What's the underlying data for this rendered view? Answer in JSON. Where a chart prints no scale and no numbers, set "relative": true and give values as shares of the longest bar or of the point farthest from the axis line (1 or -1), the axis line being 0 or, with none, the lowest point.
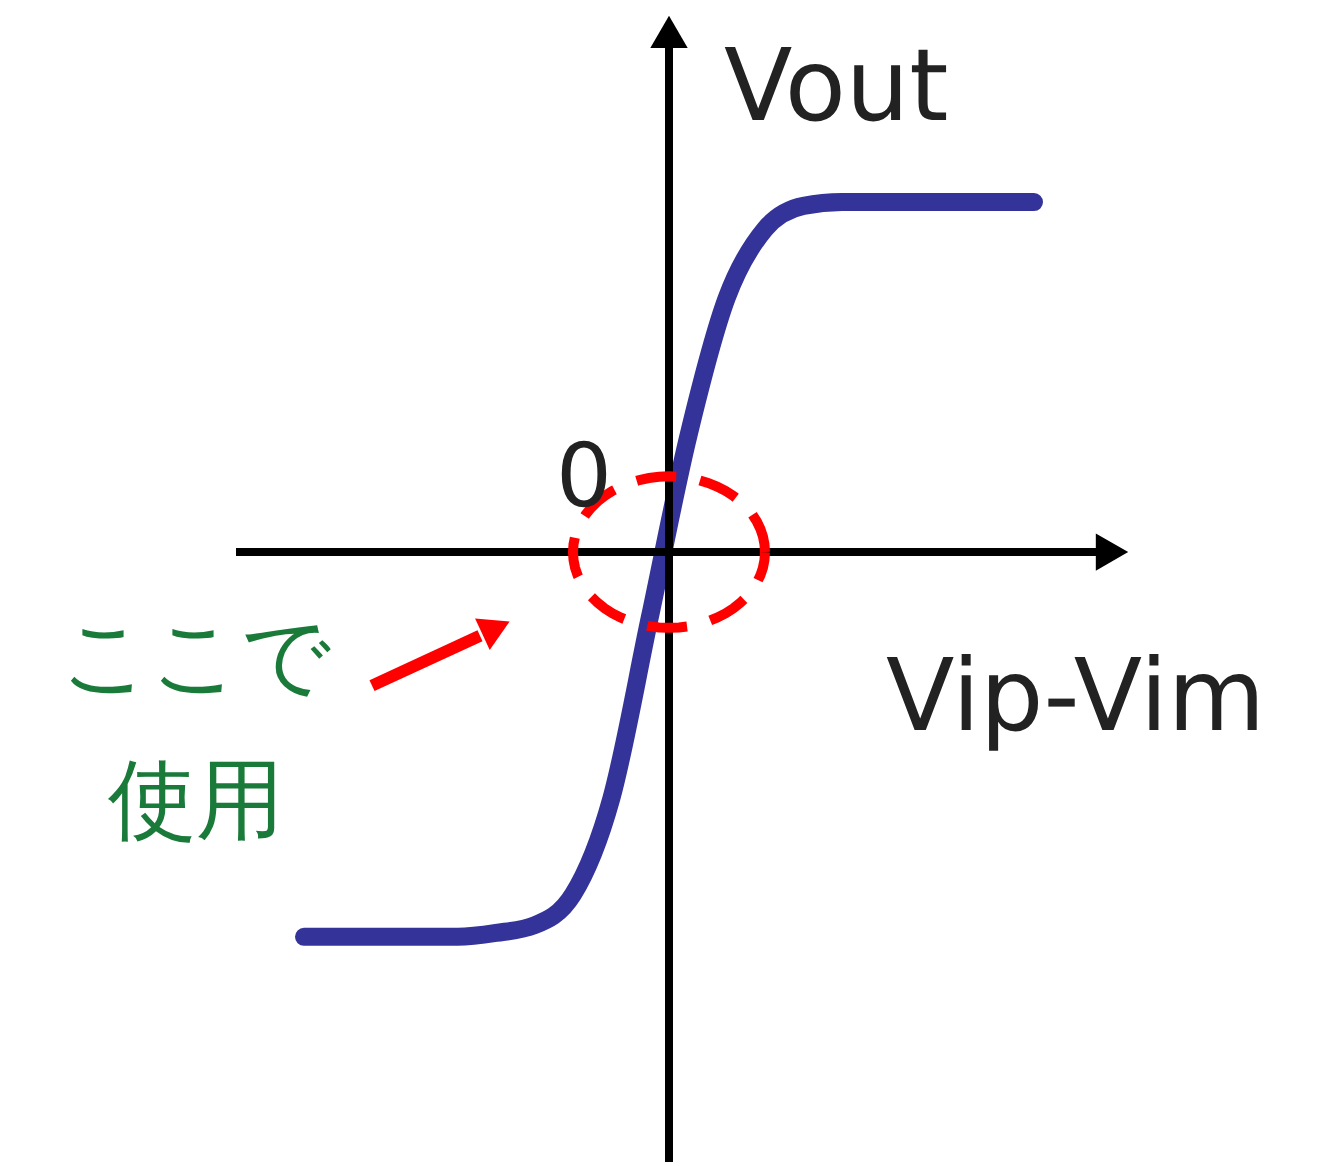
{
  "chart_data": {
    "type": "line",
    "relative": true,
    "xlabel": "Vip-Vim",
    "ylabel": "Vout",
    "annotations": [
      "0",
      "ここで使用"
    ],
    "marker": "none",
    "line_style": "solid",
    "categories": [
      null,
      null,
      null,
      null,
      null,
      null,
      null,
      null,
      null,
      null,
      null,
      null,
      null,
      null,
      null,
      null,
      null,
      null,
      null,
      null
    ],
    "series": [
      {
        "color": "#333399",
        "values": [
          -1.0,
          -1.0,
          -1.0,
          -1.0,
          -1.0,
          -0.99,
          -0.97,
          -0.89,
          -0.64,
          -0.17,
          0.3,
          0.66,
          0.84,
          0.9,
          0.91,
          0.91,
          0.91,
          0.91,
          0.91,
          0.91
        ]
      }
    ]
  }
}
